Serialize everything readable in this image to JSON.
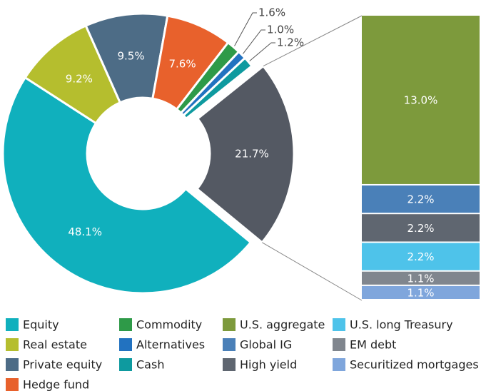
{
  "chart_data": [
    {
      "type": "pie",
      "categories": [
        "Equity",
        "Real estate",
        "Private equity",
        "Hedge fund",
        "Commodity",
        "Alternatives",
        "Cash",
        null
      ],
      "values": [
        48.1,
        9.2,
        9.5,
        7.6,
        1.6,
        1.0,
        1.2,
        21.7
      ],
      "value_labels": [
        "48.1%",
        "9.2%",
        "9.5%",
        "7.6%",
        "1.6%",
        "1.0%",
        "1.2%",
        "21.7%"
      ],
      "colors": [
        "#10b0bd",
        "#b5be2e",
        "#4d6c86",
        "#e8612c",
        "#2e9a48",
        "#2272c0",
        "#0e9a9f",
        "#545963"
      ]
    },
    {
      "type": "bar",
      "stacked": true,
      "categories": [
        "U.S. aggregate",
        "Global IG",
        "High yield",
        "U.S. long Treasury",
        "EM debt",
        "Securitized mortgages"
      ],
      "values": [
        13.0,
        2.2,
        2.2,
        2.2,
        1.1,
        1.1
      ],
      "value_labels": [
        "13.0%",
        "2.2%",
        "2.2%",
        "2.2%",
        "1.1%",
        "1.1%"
      ],
      "colors": [
        "#7d9a3c",
        "#4a80b8",
        "#5f6670",
        "#4ec3ea",
        "#80868e",
        "#7fa6dc"
      ]
    }
  ]
}
